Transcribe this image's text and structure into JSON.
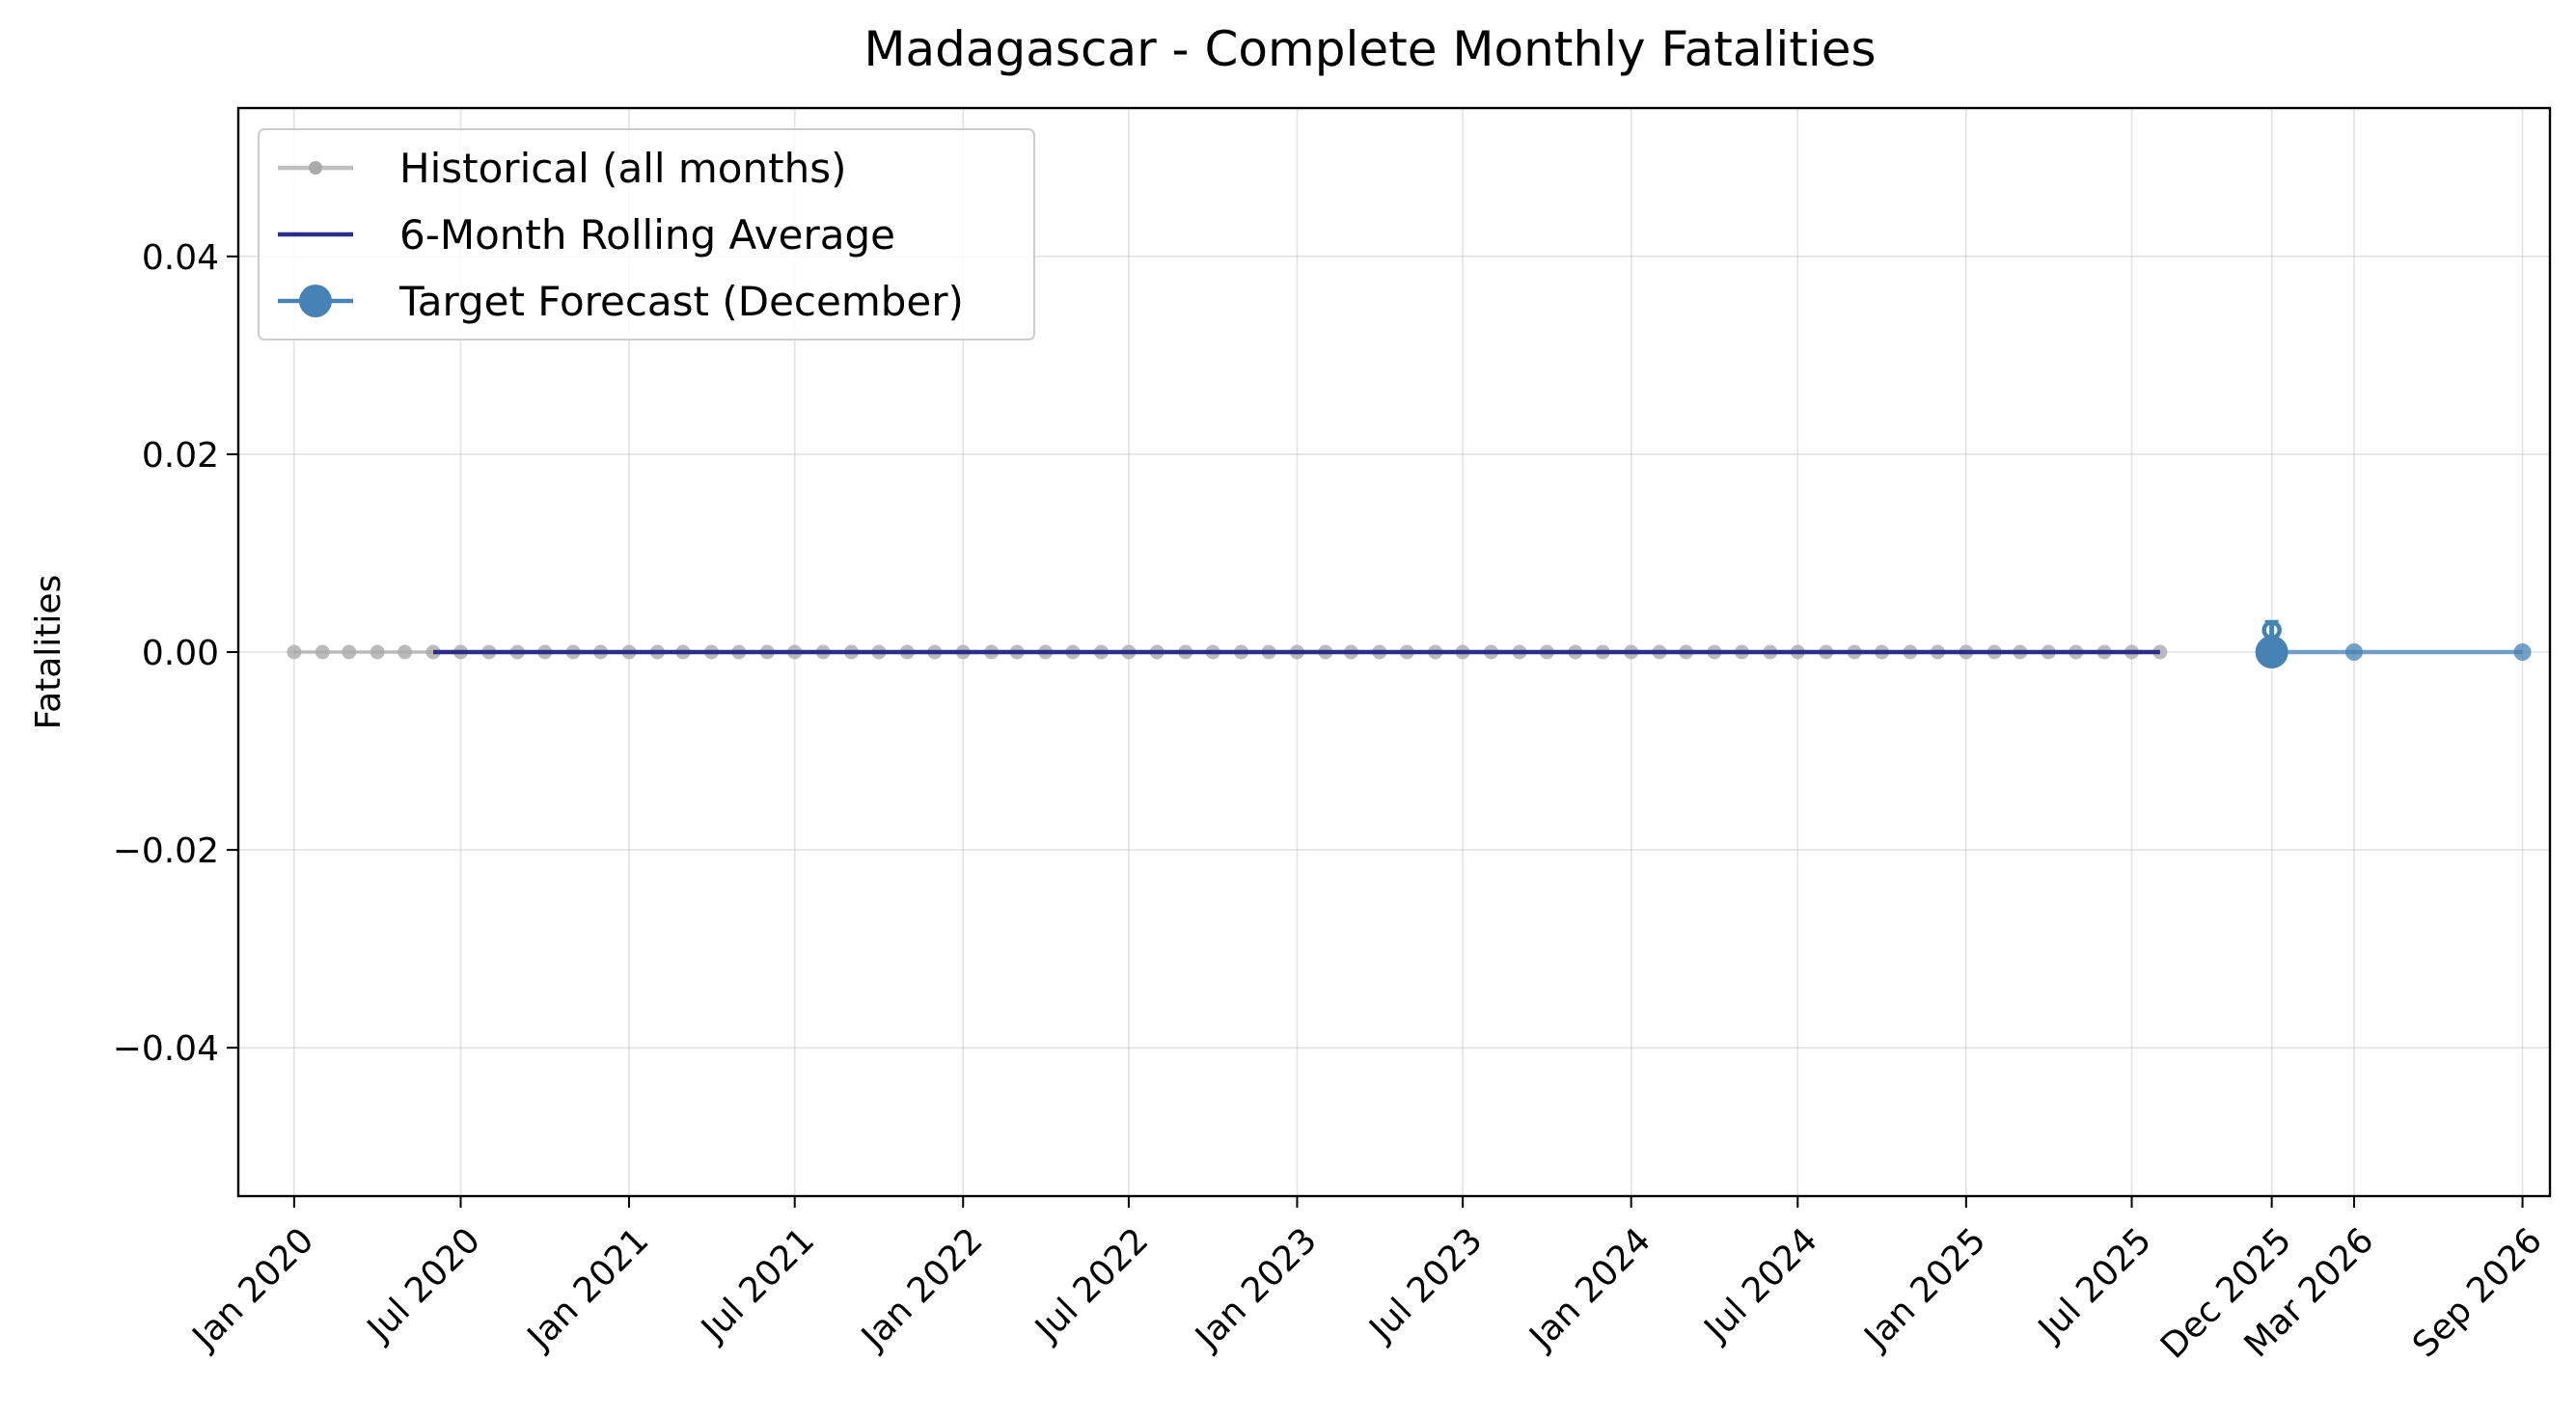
{
  "chart_data": {
    "type": "line",
    "title": "Madagascar - Complete Monthly Fatalities",
    "xlabel": "",
    "ylabel": "Fatalities",
    "ylim": [
      -0.055,
      0.055
    ],
    "xlim": [
      "2019-11-01",
      "2026-10-01"
    ],
    "grid": true,
    "legend_position": "top-left",
    "yticks": [
      -0.04,
      -0.02,
      0.0,
      0.02,
      0.04
    ],
    "ytick_labels": [
      "−0.04",
      "−0.02",
      "0.00",
      "0.02",
      "0.04"
    ],
    "xticks": [
      "2020-01-01",
      "2020-07-01",
      "2021-01-01",
      "2021-07-01",
      "2022-01-01",
      "2022-07-01",
      "2023-01-01",
      "2023-07-01",
      "2024-01-01",
      "2024-07-01",
      "2025-01-01",
      "2025-07-01",
      "2025-12-01",
      "2026-03-01",
      "2026-09-01"
    ],
    "xtick_labels": [
      "Jan 2020",
      "Jul 2020",
      "Jan 2021",
      "Jul 2021",
      "Jan 2022",
      "Jul 2022",
      "Jan 2023",
      "Jul 2023",
      "Jan 2024",
      "Jul 2024",
      "Jan 2025",
      "Jul 2025",
      "Dec 2025",
      "Mar 2026",
      "Sep 2026"
    ],
    "series": [
      {
        "name": "Historical (all months)",
        "color": "#aaaaaa",
        "marker": "small-circle",
        "x_start": "2020-01",
        "x_end": "2025-08",
        "frequency": "monthly",
        "value": 0
      },
      {
        "name": "6-Month Rolling Average",
        "color": "#2a2d8a",
        "marker": "none",
        "x_start": "2020-06",
        "x_end": "2025-08",
        "frequency": "monthly",
        "value": 0
      },
      {
        "name": "Target Forecast (December)",
        "color": "#4682b4",
        "marker": "large-circle",
        "x": [
          "2025-12-01"
        ],
        "y": [
          0
        ]
      }
    ],
    "forecast_line": {
      "color": "#4682b4",
      "x": [
        "2025-12-01",
        "2026-03-01",
        "2026-09-01"
      ],
      "y": [
        0,
        0,
        0
      ]
    },
    "forecast_interval": {
      "x": "2025-12-01",
      "low": 0,
      "high": 0.003
    }
  }
}
